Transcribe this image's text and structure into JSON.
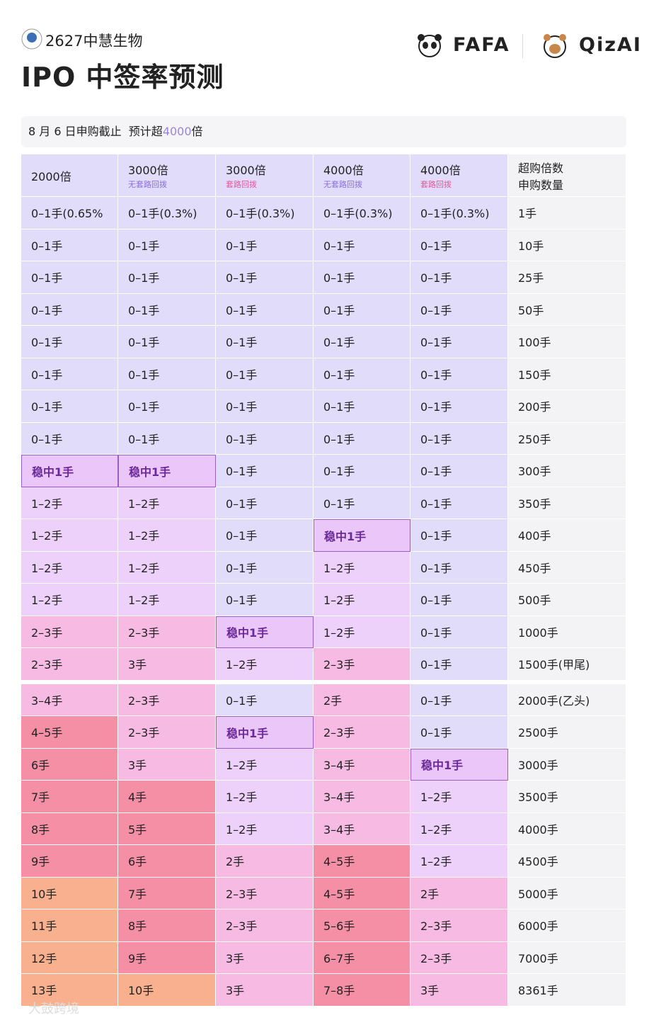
{
  "header": {
    "company": "2627中慧生物",
    "title": "IPO 中签率预测",
    "brands": [
      "FAFA",
      "QizAI"
    ]
  },
  "info": {
    "deadline": "8 月 6 日申购截止",
    "prefix": "预计超",
    "highlight": "4000",
    "suffix": "倍"
  },
  "table": {
    "headers": [
      {
        "label": "2000倍"
      },
      {
        "label": "3000倍",
        "note": "无套路回拨",
        "note_color": "#8b6ee0"
      },
      {
        "label": "3000倍",
        "note": "套路回拨",
        "note_color": "#e0589a"
      },
      {
        "label": "4000倍",
        "note": "无套路回拨",
        "note_color": "#8b6ee0"
      },
      {
        "label": "4000倍",
        "note": "套路回拨",
        "note_color": "#e0589a"
      },
      {
        "label": "超购倍数",
        "label2": "申购数量"
      }
    ],
    "groups": [
      [
        [
          "0–1手(0.65%",
          "0–1手(0.3%)",
          "0–1手(0.3%)",
          "0–1手(0.3%)",
          "0–1手(0.3%)",
          "1手"
        ],
        [
          "0–1手",
          "0–1手",
          "0–1手",
          "0–1手",
          "0–1手",
          "10手"
        ],
        [
          "0–1手",
          "0–1手",
          "0–1手",
          "0–1手",
          "0–1手",
          "25手"
        ],
        [
          "0–1手",
          "0–1手",
          "0–1手",
          "0–1手",
          "0–1手",
          "50手"
        ],
        [
          "0–1手",
          "0–1手",
          "0–1手",
          "0–1手",
          "0–1手",
          "100手"
        ],
        [
          "0–1手",
          "0–1手",
          "0–1手",
          "0–1手",
          "0–1手",
          "150手"
        ],
        [
          "0–1手",
          "0–1手",
          "0–1手",
          "0–1手",
          "0–1手",
          "200手"
        ],
        [
          "0–1手",
          "0–1手",
          "0–1手",
          "0–1手",
          "0–1手",
          "250手"
        ],
        [
          "稳中1手",
          "稳中1手",
          "0–1手",
          "0–1手",
          "0–1手",
          "300手"
        ],
        [
          "1–2手",
          "1–2手",
          "0–1手",
          "0–1手",
          "0–1手",
          "350手"
        ],
        [
          "1–2手",
          "1–2手",
          "0–1手",
          "稳中1手",
          "0–1手",
          "400手"
        ],
        [
          "1–2手",
          "1–2手",
          "0–1手",
          "1–2手",
          "0–1手",
          "450手"
        ],
        [
          "1–2手",
          "1–2手",
          "0–1手",
          "1–2手",
          "0–1手",
          "500手"
        ],
        [
          "2–3手",
          "2–3手",
          "稳中1手",
          "1–2手",
          "0–1手",
          "1000手"
        ],
        [
          "2–3手",
          "3手",
          "1–2手",
          "2–3手",
          "0–1手",
          "1500手(甲尾)"
        ]
      ],
      [
        [
          "3–4手",
          "2–3手",
          "0–1手",
          "2手",
          "0–1手",
          "2000手(乙头)"
        ],
        [
          "4–5手",
          "2–3手",
          "稳中1手",
          "2–3手",
          "0–1手",
          "2500手"
        ],
        [
          "6手",
          "3手",
          "1–2手",
          "3–4手",
          "稳中1手",
          "3000手"
        ],
        [
          "7手",
          "4手",
          "1–2手",
          "3–4手",
          "1–2手",
          "3500手"
        ],
        [
          "8手",
          "5手",
          "1–2手",
          "3–4手",
          "1–2手",
          "4000手"
        ],
        [
          "9手",
          "6手",
          "2手",
          "4–5手",
          "1–2手",
          "4500手"
        ],
        [
          "10手",
          "7手",
          "2–3手",
          "4–5手",
          "2手",
          "5000手"
        ],
        [
          "11手",
          "8手",
          "2–3手",
          "5–6手",
          "2–3手",
          "6000手"
        ],
        [
          "12手",
          "9手",
          "3手",
          "6–7手",
          "2–3手",
          "7000手"
        ],
        [
          "13手",
          "10手",
          "3手",
          "7–8手",
          "3手",
          "8361手"
        ]
      ]
    ]
  },
  "watermark": "大鼓跨境"
}
